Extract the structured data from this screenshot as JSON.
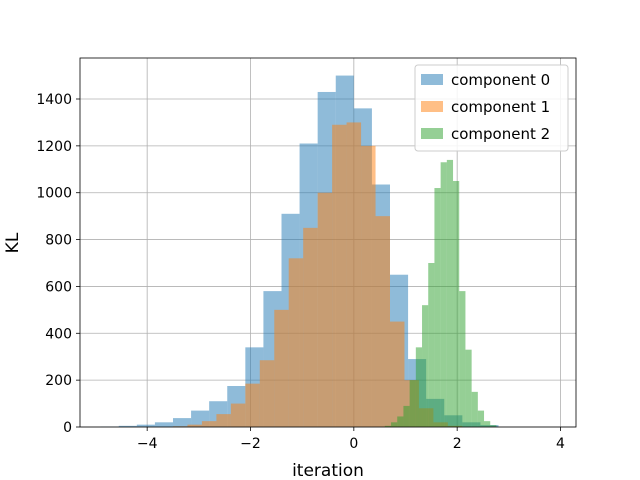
{
  "chart_data": {
    "type": "histogram",
    "title": "",
    "xlabel": "iteration",
    "ylabel": "KL",
    "xlim": [
      -5.3,
      4.3
    ],
    "ylim": [
      0,
      1575
    ],
    "xticks": [
      -4,
      -2,
      0,
      2,
      4
    ],
    "yticks": [
      0,
      200,
      400,
      600,
      800,
      1000,
      1200,
      1400
    ],
    "grid": true,
    "legend_position": "top-right",
    "series": [
      {
        "name": "component 0",
        "color": "#1f77b4",
        "bin_width": 0.35,
        "x": [
          -4.9,
          -4.55,
          -4.2,
          -3.85,
          -3.5,
          -3.15,
          -2.8,
          -2.45,
          -2.1,
          -1.75,
          -1.4,
          -1.05,
          -0.7,
          -0.35,
          0.0,
          0.35,
          0.7,
          1.05,
          1.4,
          1.75,
          2.1,
          2.45
        ],
        "values": [
          2,
          5,
          10,
          20,
          38,
          70,
          110,
          175,
          340,
          580,
          910,
          1210,
          1430,
          1500,
          1360,
          1035,
          650,
          290,
          120,
          50,
          20,
          8
        ]
      },
      {
        "name": "component 1",
        "color": "#ff7f0e",
        "bin_width": 0.28,
        "x": [
          -3.5,
          -3.22,
          -2.94,
          -2.66,
          -2.38,
          -2.1,
          -1.82,
          -1.54,
          -1.26,
          -0.98,
          -0.7,
          -0.42,
          -0.14,
          0.14,
          0.42,
          0.7,
          0.98,
          1.26,
          1.54,
          1.82
        ],
        "values": [
          3,
          10,
          25,
          55,
          100,
          185,
          285,
          500,
          720,
          850,
          1000,
          1290,
          1300,
          1200,
          900,
          450,
          200,
          80,
          20,
          5
        ]
      },
      {
        "name": "component 2",
        "color": "#2ca02c",
        "bin_width": 0.12,
        "x": [
          0.6,
          0.72,
          0.84,
          0.96,
          1.08,
          1.2,
          1.32,
          1.44,
          1.56,
          1.68,
          1.8,
          1.92,
          2.04,
          2.16,
          2.28,
          2.4,
          2.52,
          2.64
        ],
        "values": [
          5,
          20,
          45,
          90,
          200,
          340,
          520,
          700,
          1020,
          1130,
          1140,
          1050,
          580,
          330,
          150,
          70,
          25,
          8
        ]
      }
    ]
  }
}
